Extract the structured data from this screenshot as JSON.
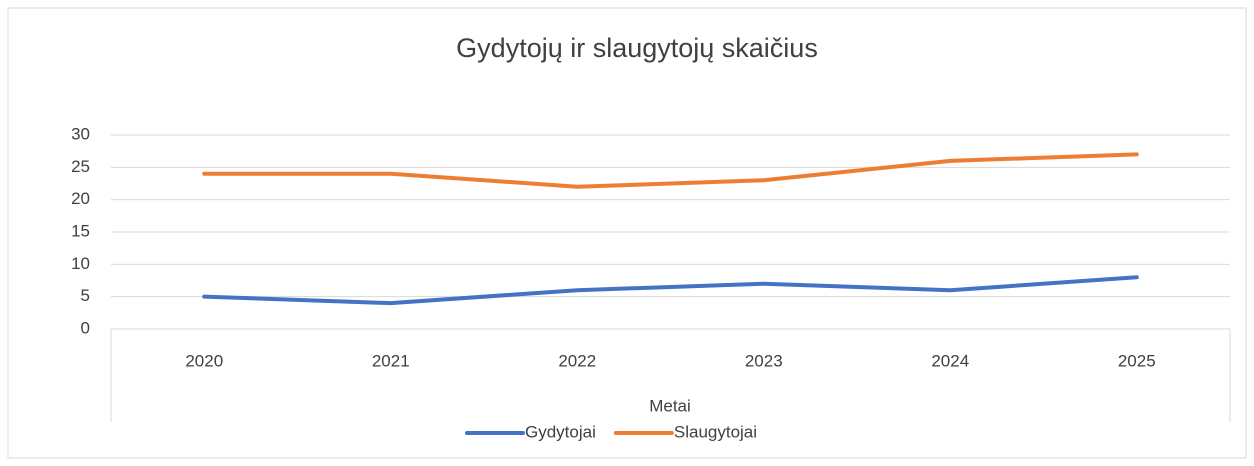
{
  "chart_data": {
    "type": "line",
    "title": "Gydytojų ir slaugytojų skaičius",
    "x_label": "Metai",
    "categories": [
      "2020",
      "2021",
      "2022",
      "2023",
      "2024",
      "2025"
    ],
    "series": [
      {
        "name": "Gydytojai",
        "color": "#4472c4",
        "values": [
          5,
          4,
          6,
          7,
          6,
          8
        ]
      },
      {
        "name": "Slaugytojai",
        "color": "#ed7d31",
        "values": [
          24,
          24,
          22,
          23,
          26,
          27
        ]
      }
    ],
    "ylim": [
      0,
      30
    ],
    "yticks": [
      0,
      5,
      10,
      15,
      20,
      25,
      30
    ],
    "grid": true,
    "legend": "bottom"
  }
}
